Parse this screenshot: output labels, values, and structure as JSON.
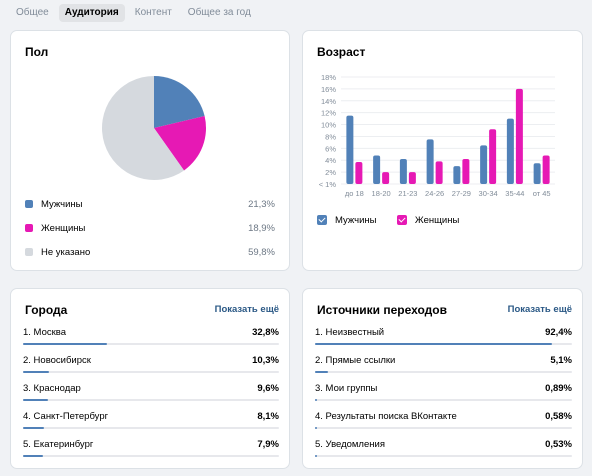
{
  "tabs": [
    "Общее",
    "Аудитория",
    "Контент",
    "Общее за год"
  ],
  "active_tab": 1,
  "colors": {
    "male": "#5181b8",
    "female": "#e619b4",
    "unknown": "#d5d9de",
    "bar": "#5181b8",
    "track": "#e7e8ec",
    "link": "#2a5885"
  },
  "gender": {
    "title": "Пол",
    "items": [
      {
        "label": "Мужчины",
        "pct_text": "21,3%",
        "value": 21.3,
        "icon": "male-swatch"
      },
      {
        "label": "Женщины",
        "pct_text": "18,9%",
        "value": 18.9,
        "icon": "female-swatch"
      },
      {
        "label": "Не указано",
        "pct_text": "59,8%",
        "value": 59.8,
        "icon": "unknown-swatch"
      }
    ]
  },
  "age": {
    "title": "Возраст",
    "legend": {
      "male": "Мужчины",
      "female": "Женщины"
    }
  },
  "chart_data": {
    "type": "bar",
    "title": "Возраст",
    "categories": [
      "до 18",
      "18-20",
      "21-23",
      "24-26",
      "27-29",
      "30-34",
      "35-44",
      "от 45"
    ],
    "series": [
      {
        "name": "Мужчины",
        "values": [
          11.5,
          4.8,
          4.2,
          7.5,
          3.0,
          6.5,
          11.0,
          3.5
        ]
      },
      {
        "name": "Женщины",
        "values": [
          3.7,
          2.0,
          2.0,
          3.8,
          4.2,
          9.2,
          16.0,
          4.8
        ]
      }
    ],
    "y_ticks": [
      "18%",
      "16%",
      "14%",
      "12%",
      "10%",
      "8%",
      "6%",
      "4%",
      "2%",
      "< 1%"
    ],
    "ylim": [
      0,
      18
    ],
    "grid": true,
    "legend_position": "bottom-left"
  },
  "cities": {
    "title": "Города",
    "show_more": "Показать ещё",
    "items": [
      {
        "label": "1. Москва",
        "value_text": "32,8%",
        "value": 32.8
      },
      {
        "label": "2. Новосибирск",
        "value_text": "10,3%",
        "value": 10.3
      },
      {
        "label": "3. Краснодар",
        "value_text": "9,6%",
        "value": 9.6
      },
      {
        "label": "4. Санкт-Петербург",
        "value_text": "8,1%",
        "value": 8.1
      },
      {
        "label": "5. Екатеринбург",
        "value_text": "7,9%",
        "value": 7.9
      }
    ]
  },
  "sources": {
    "title": "Источники переходов",
    "show_more": "Показать ещё",
    "items": [
      {
        "label": "1. Неизвестный",
        "value_text": "92,4%",
        "value": 92.4
      },
      {
        "label": "2. Прямые ссылки",
        "value_text": "5,1%",
        "value": 5.1
      },
      {
        "label": "3. Мои группы",
        "value_text": "0,89%",
        "value": 0.89
      },
      {
        "label": "4. Результаты поиска ВКонтакте",
        "value_text": "0,58%",
        "value": 0.58
      },
      {
        "label": "5. Уведомления",
        "value_text": "0,53%",
        "value": 0.53
      }
    ]
  }
}
